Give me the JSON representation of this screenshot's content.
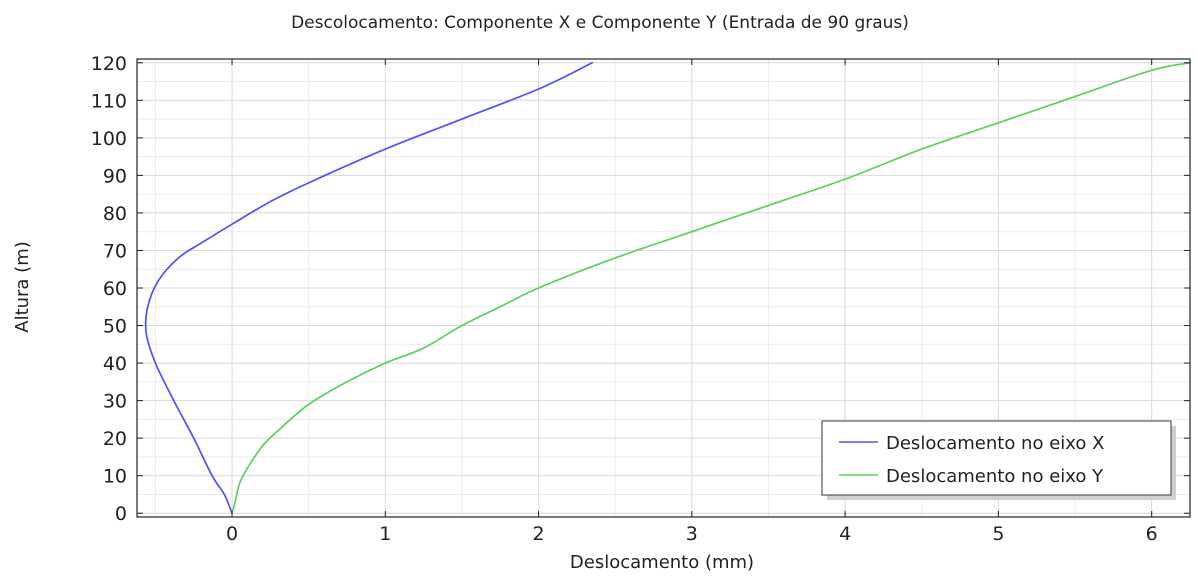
{
  "chart_data": {
    "type": "line",
    "title": "Descolocamento: Componente X e Componente Y (Entrada de 90 graus)",
    "xlabel": "Deslocamento (mm)",
    "ylabel": "Altura (m)",
    "xlim": [
      -0.62,
      6.25
    ],
    "ylim": [
      -1,
      121
    ],
    "xticks": [
      0,
      1,
      2,
      3,
      4,
      5,
      6
    ],
    "yticks": [
      0,
      10,
      20,
      30,
      40,
      50,
      60,
      70,
      80,
      90,
      100,
      110,
      120
    ],
    "x_minor_step": 0.5,
    "y_minor_step": 5,
    "grid": true,
    "legend_position": "bottom-right",
    "series": [
      {
        "name": "Deslocamento no eixo X",
        "color": "#5050ff",
        "points": [
          [
            0,
            0
          ],
          [
            -0.05,
            5
          ],
          [
            -0.13,
            10
          ],
          [
            -0.25,
            20
          ],
          [
            -0.38,
            30
          ],
          [
            -0.5,
            40
          ],
          [
            -0.56,
            48
          ],
          [
            -0.55,
            55
          ],
          [
            -0.48,
            62
          ],
          [
            -0.35,
            68
          ],
          [
            -0.2,
            72
          ],
          [
            0,
            77
          ],
          [
            0.25,
            83
          ],
          [
            0.5,
            88
          ],
          [
            1.0,
            97
          ],
          [
            1.5,
            105
          ],
          [
            2.0,
            113
          ],
          [
            2.35,
            120
          ]
        ]
      },
      {
        "name": "Deslocamento no eixo Y",
        "color": "#5fce5f",
        "points": [
          [
            0,
            0
          ],
          [
            0.02,
            3
          ],
          [
            0.05,
            8
          ],
          [
            0.1,
            12
          ],
          [
            0.2,
            18
          ],
          [
            0.3,
            22
          ],
          [
            0.5,
            29
          ],
          [
            0.75,
            35
          ],
          [
            1.0,
            40
          ],
          [
            1.25,
            44
          ],
          [
            1.5,
            50
          ],
          [
            1.75,
            55
          ],
          [
            2.0,
            60
          ],
          [
            2.5,
            68
          ],
          [
            3.0,
            75
          ],
          [
            3.5,
            82
          ],
          [
            4.0,
            89
          ],
          [
            4.5,
            97
          ],
          [
            5.0,
            104
          ],
          [
            5.5,
            111
          ],
          [
            6.0,
            118
          ],
          [
            6.25,
            120
          ]
        ]
      }
    ]
  }
}
